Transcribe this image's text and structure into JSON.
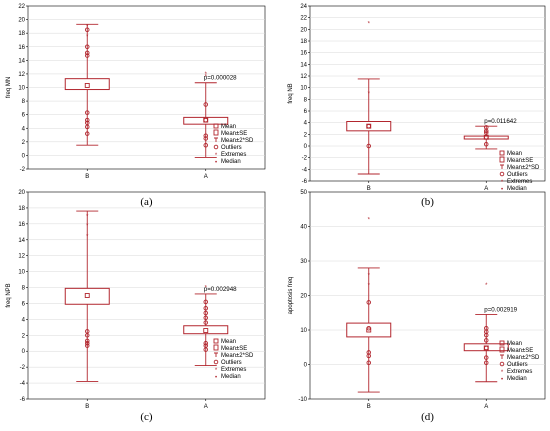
{
  "legend": [
    "Mean",
    "Mean±SE",
    "Mean±2*SD",
    "Outliers",
    "Extremes",
    "Median"
  ],
  "colors": {
    "mark": "#b2262e",
    "grid": "#d8d8d8"
  },
  "chart_data": [
    {
      "type": "box",
      "panel_label": "(a)",
      "ylabel": "freq MN",
      "ylim": [
        -2,
        22
      ],
      "yticks": [
        -2,
        0,
        2,
        4,
        6,
        8,
        10,
        12,
        14,
        16,
        18,
        20,
        22
      ],
      "categories": [
        "B",
        "A"
      ],
      "p_value_text": "p=0.000028",
      "groups": [
        {
          "name": "B",
          "mean": 10.3,
          "se_low": 9.7,
          "se_high": 11.3,
          "sd2_low": 1.5,
          "sd2_high": 19.3,
          "outliers": [
            3.2,
            4.2,
            4.8,
            5.2,
            6.3,
            14.7,
            15.1,
            16.0,
            18.5
          ],
          "extremes": [
            17.5,
            19.0
          ]
        },
        {
          "name": "A",
          "mean": 5.2,
          "se_low": 4.6,
          "se_high": 5.6,
          "sd2_low": -0.3,
          "sd2_high": 10.7,
          "outliers": [
            1.5,
            2.5,
            2.9,
            5.2,
            7.5
          ],
          "extremes": [
            11.6,
            12.0
          ]
        }
      ]
    },
    {
      "type": "box",
      "panel_label": "(b)",
      "ylabel": "freq NB",
      "ylim": [
        -6,
        24
      ],
      "yticks": [
        -6,
        -4,
        -2,
        0,
        2,
        4,
        6,
        8,
        10,
        12,
        14,
        16,
        18,
        20,
        22,
        24
      ],
      "categories": [
        "B",
        "A"
      ],
      "p_value_text": "p=0.011642",
      "groups": [
        {
          "name": "B",
          "mean": 3.4,
          "se_low": 2.6,
          "se_high": 4.2,
          "sd2_low": -4.8,
          "sd2_high": 11.5,
          "outliers": [
            0.0,
            3.4
          ],
          "extremes": [
            9.0,
            21.0
          ]
        },
        {
          "name": "A",
          "mean": 1.5,
          "se_low": 1.2,
          "se_high": 1.7,
          "sd2_low": -0.5,
          "sd2_high": 3.4,
          "outliers": [
            0.3,
            1.5,
            2.3,
            2.6,
            3.2
          ],
          "extremes": []
        }
      ]
    },
    {
      "type": "box",
      "panel_label": "(c)",
      "ylabel": "freq NPB",
      "ylim": [
        -6,
        20
      ],
      "yticks": [
        -6,
        -4,
        -2,
        0,
        2,
        4,
        6,
        8,
        10,
        12,
        14,
        16,
        18,
        20
      ],
      "categories": [
        "B",
        "A"
      ],
      "p_value_text": "p=0.002948",
      "groups": [
        {
          "name": "B",
          "mean": 7.0,
          "se_low": 5.9,
          "se_high": 7.9,
          "sd2_low": -3.8,
          "sd2_high": 17.6,
          "outliers": [
            0.7,
            1.0,
            1.3,
            2.0,
            2.5
          ],
          "extremes": [
            14.5,
            15.8,
            17.0
          ]
        },
        {
          "name": "A",
          "mean": 2.6,
          "se_low": 2.2,
          "se_high": 3.2,
          "sd2_low": -1.8,
          "sd2_high": 7.2,
          "outliers": [
            0.2,
            0.7,
            1.0,
            3.6,
            4.2,
            4.8,
            5.4,
            6.2
          ],
          "extremes": [
            8.0
          ]
        }
      ]
    },
    {
      "type": "box",
      "panel_label": "(d)",
      "ylabel": "apoptosis freq",
      "ylim": [
        -10,
        50
      ],
      "yticks": [
        -10,
        0,
        10,
        20,
        30,
        40,
        50
      ],
      "categories": [
        "B",
        "A"
      ],
      "p_value_text": "p=0.002919",
      "groups": [
        {
          "name": "B",
          "mean": 10.0,
          "se_low": 8.0,
          "se_high": 12.0,
          "sd2_low": -8.0,
          "sd2_high": 28.0,
          "outliers": [
            0.5,
            2.5,
            3.5,
            10.5,
            18.0
          ],
          "extremes": [
            23.0,
            26.0,
            42.0
          ]
        },
        {
          "name": "A",
          "mean": 4.8,
          "se_low": 4.0,
          "se_high": 6.0,
          "sd2_low": -5.0,
          "sd2_high": 14.5,
          "outliers": [
            0.5,
            2.0,
            4.8,
            7.0,
            8.5,
            9.5,
            10.5
          ],
          "extremes": [
            23.0
          ]
        }
      ]
    }
  ]
}
